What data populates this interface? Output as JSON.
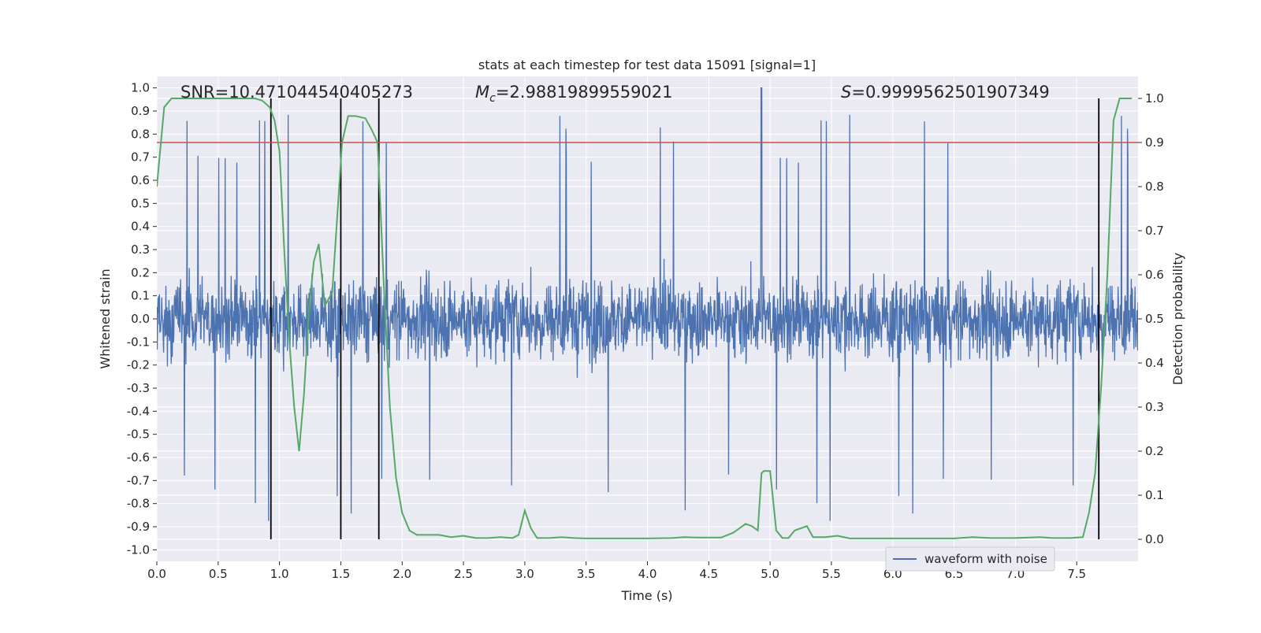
{
  "chart_data": {
    "type": "line",
    "title": "stats at each timestep for test data 15091 [signal=1]",
    "xlabel": "Time (s)",
    "ylabel_left": "Whitened strain",
    "ylabel_right": "Detection probability",
    "xlim": [
      0.0,
      8.0
    ],
    "ylim_left": [
      -1.05,
      1.05
    ],
    "ylim_right": [
      -0.05,
      1.05
    ],
    "x_ticks": [
      "0.0",
      "0.5",
      "1.0",
      "1.5",
      "2.0",
      "2.5",
      "3.0",
      "3.5",
      "4.0",
      "4.5",
      "5.0",
      "5.5",
      "6.0",
      "6.5",
      "7.0",
      "7.5"
    ],
    "x_tick_values": [
      0.0,
      0.5,
      1.0,
      1.5,
      2.0,
      2.5,
      3.0,
      3.5,
      4.0,
      4.5,
      5.0,
      5.5,
      6.0,
      6.5,
      7.0,
      7.5
    ],
    "y_left_ticks": [
      "1.0",
      "0.9",
      "0.8",
      "0.7",
      "0.6",
      "0.5",
      "0.4",
      "0.3",
      "0.2",
      "0.1",
      "0.0",
      "-0.1",
      "-0.2",
      "-0.3",
      "-0.4",
      "-0.5",
      "-0.6",
      "-0.7",
      "-0.8",
      "-0.9",
      "-1.0"
    ],
    "y_left_tick_values": [
      1.0,
      0.9,
      0.8,
      0.7,
      0.6,
      0.5,
      0.4,
      0.3,
      0.2,
      0.1,
      0.0,
      -0.1,
      -0.2,
      -0.3,
      -0.4,
      -0.5,
      -0.6,
      -0.7,
      -0.8,
      -0.9,
      -1.0
    ],
    "y_right_ticks": [
      "1.0",
      "0.9",
      "0.8",
      "0.7",
      "0.6",
      "0.5",
      "0.4",
      "0.3",
      "0.2",
      "0.1",
      "0.0"
    ],
    "y_right_tick_values": [
      1.0,
      0.9,
      0.8,
      0.7,
      0.6,
      0.5,
      0.4,
      0.3,
      0.2,
      0.1,
      0.0
    ],
    "annotations": {
      "snr": "SNR=10.471044540405273",
      "mc_symbol": "M",
      "mc_sub": "c",
      "mc_value": "=2.98819899559021",
      "s_symbol": "S",
      "s_value": "=0.9999562501907349"
    },
    "threshold": {
      "value": 0.9,
      "axis": "right",
      "color": "#c44e52"
    },
    "vertical_markers": [
      0.93,
      1.5,
      1.81,
      7.68
    ],
    "series": [
      {
        "name": "waveform with noise",
        "axis": "left",
        "color": "#4c72b0",
        "typical_amplitude": 0.4,
        "peak_amplitude": 1.0,
        "peak_time": 4.93
      },
      {
        "name": "detection probability",
        "axis": "right",
        "color": "#55a868",
        "x": [
          0.0,
          0.06,
          0.12,
          0.2,
          0.4,
          0.6,
          0.7,
          0.8,
          0.86,
          0.92,
          0.96,
          1.0,
          1.04,
          1.08,
          1.12,
          1.16,
          1.2,
          1.24,
          1.28,
          1.32,
          1.37,
          1.43,
          1.48,
          1.51,
          1.56,
          1.62,
          1.7,
          1.75,
          1.8,
          1.85,
          1.9,
          1.95,
          2.0,
          2.06,
          2.12,
          2.2,
          2.3,
          2.4,
          2.5,
          2.6,
          2.7,
          2.8,
          2.9,
          2.95,
          3.0,
          3.05,
          3.1,
          3.2,
          3.3,
          3.4,
          3.5,
          3.6,
          3.8,
          4.0,
          4.2,
          4.3,
          4.4,
          4.6,
          4.7,
          4.75,
          4.8,
          4.85,
          4.9,
          4.93,
          4.95,
          5.0,
          5.05,
          5.1,
          5.15,
          5.2,
          5.25,
          5.3,
          5.35,
          5.45,
          5.55,
          5.65,
          5.75,
          6.0,
          6.5,
          6.65,
          6.8,
          7.0,
          7.2,
          7.3,
          7.45,
          7.55,
          7.6,
          7.65,
          7.7,
          7.75,
          7.8,
          7.85,
          7.9,
          7.95
        ],
        "y": [
          0.8,
          0.98,
          1.0,
          1.0,
          1.0,
          1.0,
          1.0,
          1.0,
          0.995,
          0.98,
          0.95,
          0.88,
          0.65,
          0.45,
          0.3,
          0.2,
          0.33,
          0.52,
          0.63,
          0.67,
          0.53,
          0.56,
          0.77,
          0.9,
          0.96,
          0.96,
          0.955,
          0.93,
          0.9,
          0.58,
          0.3,
          0.14,
          0.06,
          0.02,
          0.01,
          0.01,
          0.01,
          0.005,
          0.008,
          0.003,
          0.003,
          0.005,
          0.003,
          0.01,
          0.065,
          0.025,
          0.003,
          0.003,
          0.005,
          0.003,
          0.002,
          0.002,
          0.002,
          0.002,
          0.003,
          0.005,
          0.004,
          0.004,
          0.015,
          0.025,
          0.035,
          0.03,
          0.02,
          0.15,
          0.155,
          0.155,
          0.02,
          0.003,
          0.003,
          0.02,
          0.025,
          0.03,
          0.005,
          0.005,
          0.008,
          0.002,
          0.002,
          0.002,
          0.002,
          0.005,
          0.003,
          0.003,
          0.005,
          0.003,
          0.003,
          0.005,
          0.06,
          0.15,
          0.35,
          0.6,
          0.95,
          1.0,
          1.0,
          1.0
        ]
      }
    ],
    "legend": {
      "entries": [
        "waveform with noise"
      ],
      "placement": "lower-right"
    },
    "grid": true
  }
}
